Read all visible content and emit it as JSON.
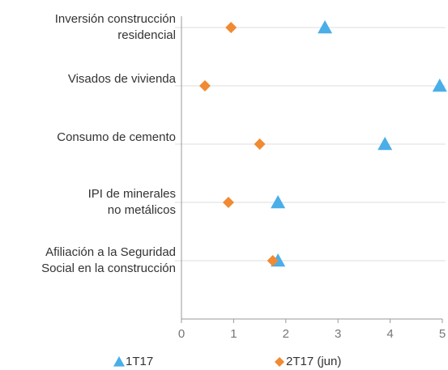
{
  "chart_data": {
    "type": "dot",
    "categories": [
      [
        "Inversión construcción",
        "residencial"
      ],
      [
        "Visados de vivienda"
      ],
      [
        "Consumo de cemento"
      ],
      [
        "IPI de minerales",
        "no metálicos"
      ],
      [
        "Afiliación a la Seguridad",
        "Social en la construcción"
      ]
    ],
    "series": [
      {
        "name": "1T17",
        "color": "#4aaee8",
        "marker": "triangle",
        "values": [
          2.75,
          4.95,
          3.9,
          1.85,
          1.85
        ]
      },
      {
        "name": "2T17 (jun)",
        "color": "#f08a33",
        "marker": "diamond",
        "values": [
          0.95,
          0.45,
          1.5,
          0.9,
          1.75
        ]
      }
    ],
    "xlim": [
      0,
      5
    ],
    "xticks": [
      0,
      1,
      2,
      3,
      4,
      5
    ],
    "grid": true
  }
}
